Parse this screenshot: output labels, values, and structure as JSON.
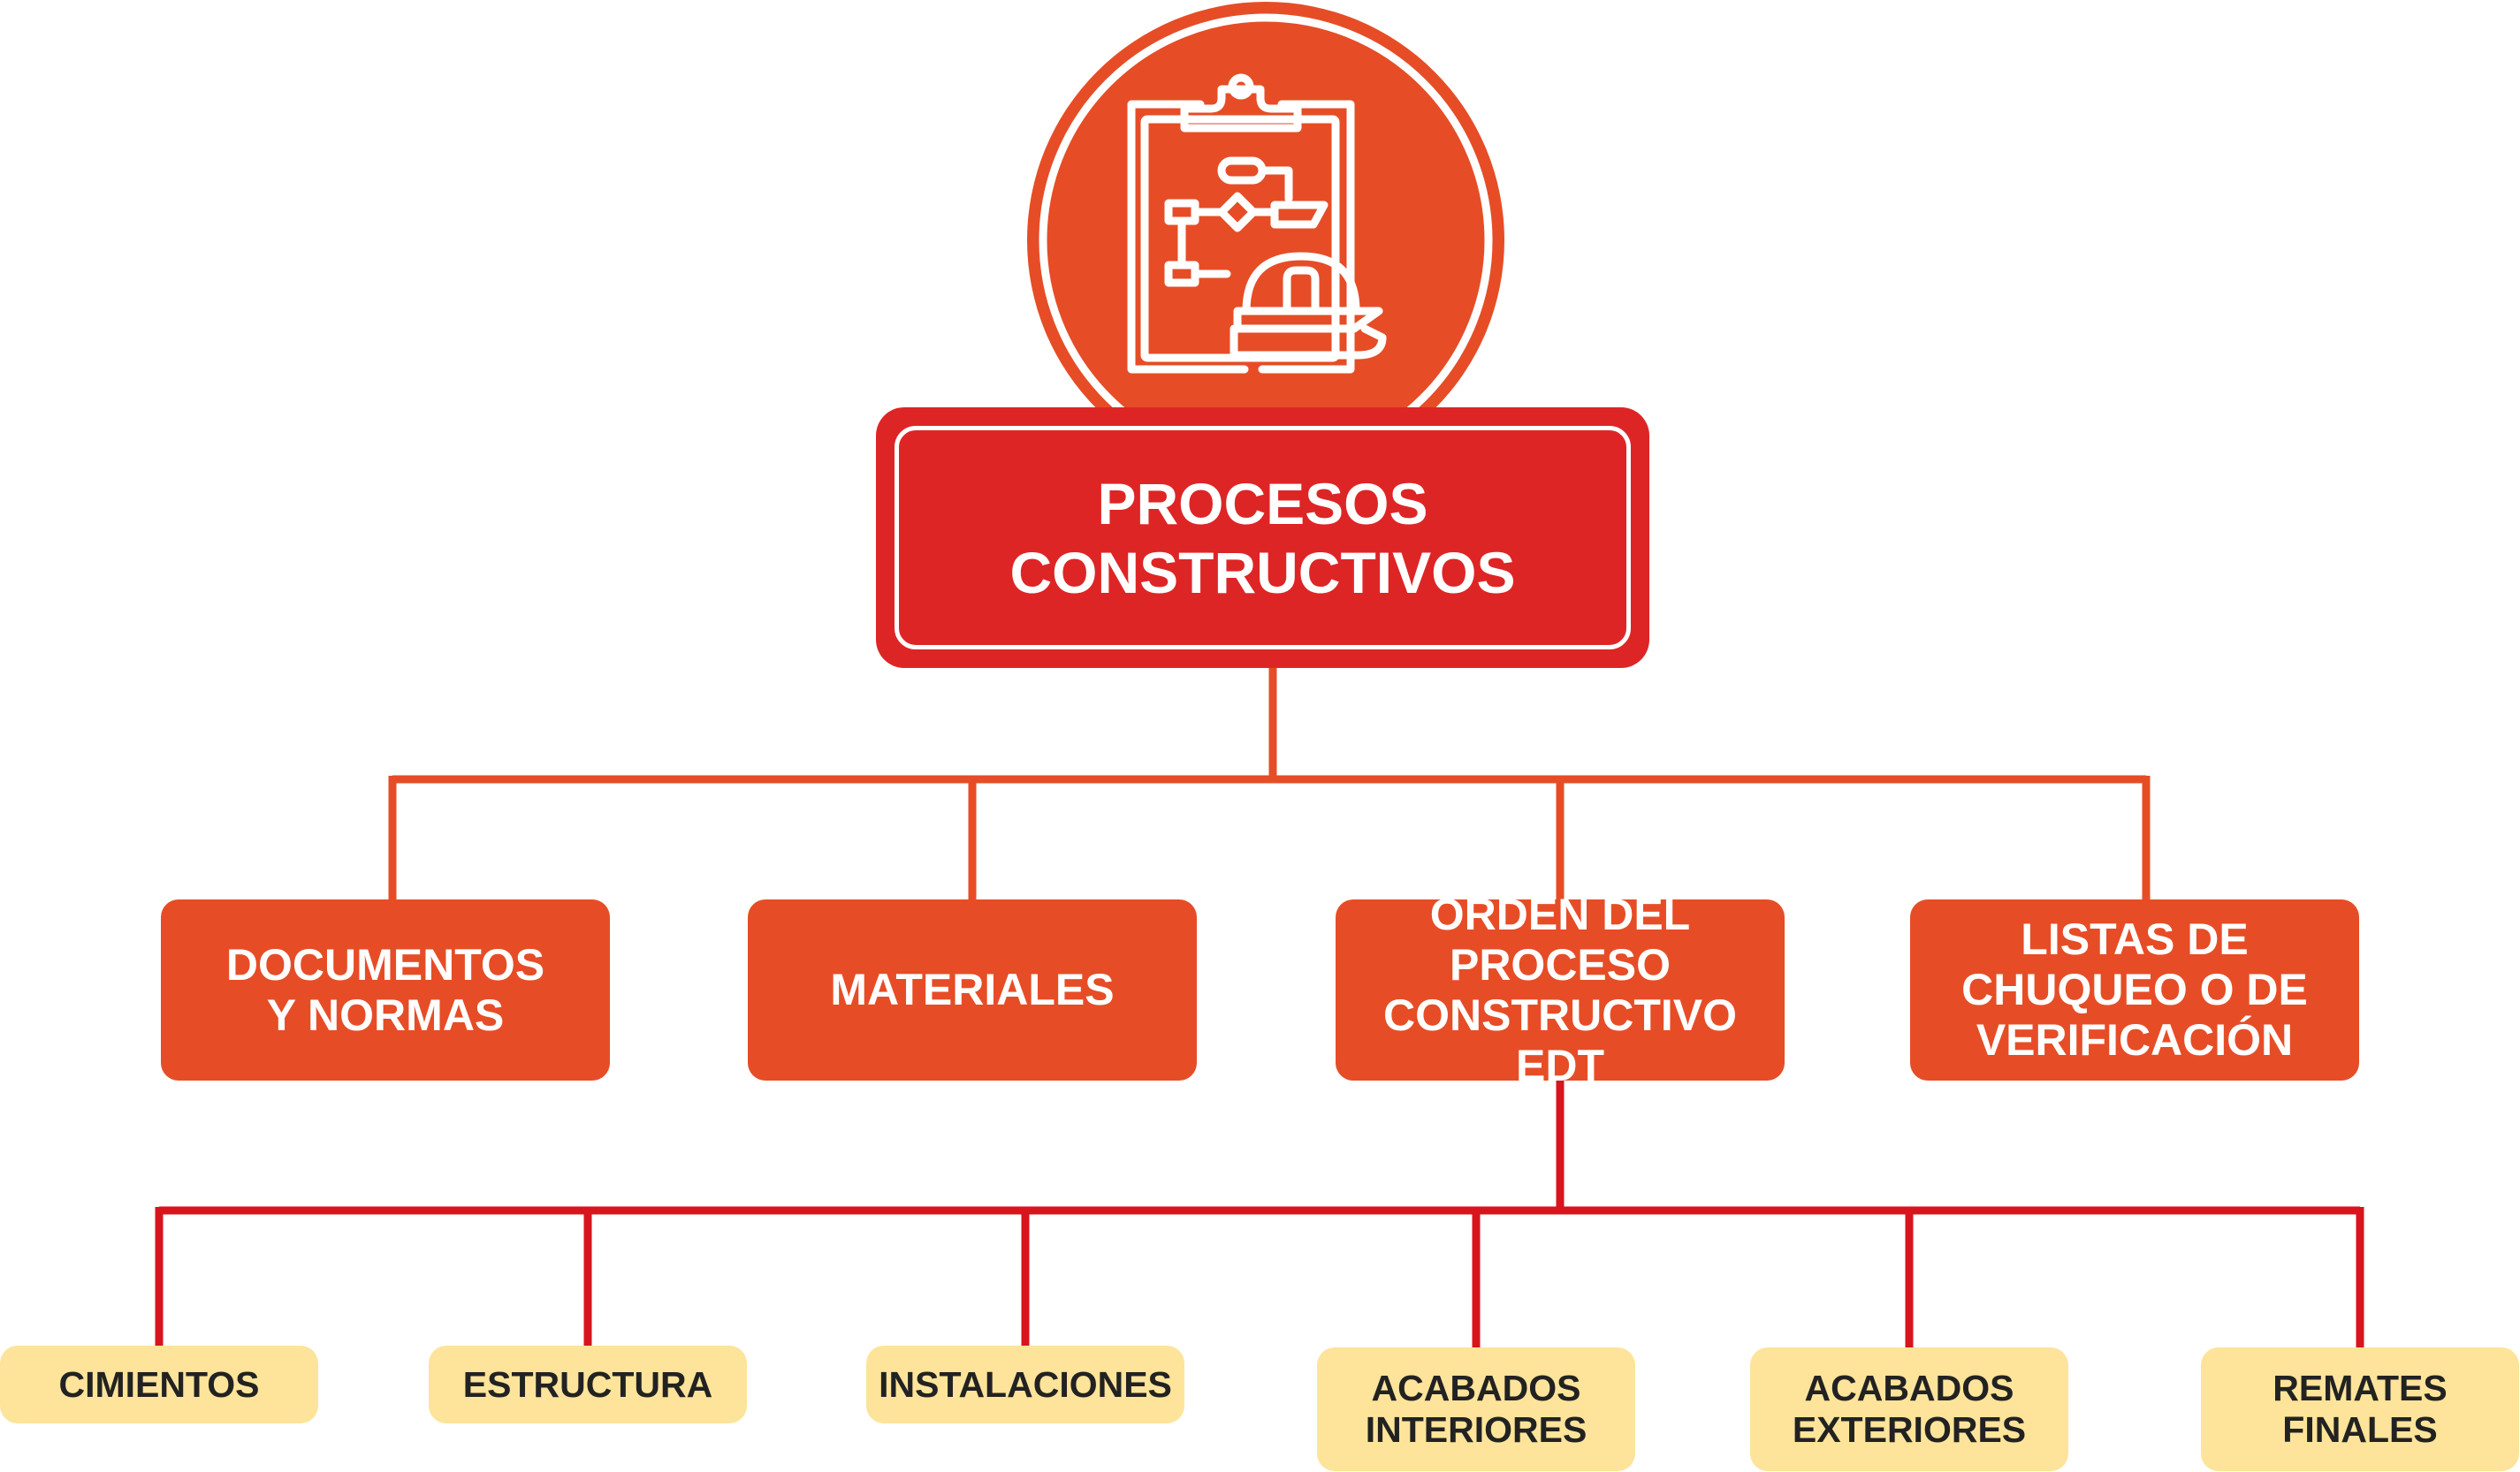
{
  "root": {
    "lines": [
      "PROCESOS",
      "CONSTRUCTIVOS"
    ]
  },
  "icon": "clipboard-flowchart-hardhat-icon",
  "categories": [
    {
      "lines": [
        "DOCUMENTOS",
        "Y NORMAS"
      ]
    },
    {
      "lines": [
        "MATERIALES"
      ]
    },
    {
      "lines": [
        "ORDEN DEL",
        "PROCESO",
        "CONSTRUCTIVO EDT"
      ]
    },
    {
      "lines": [
        "LISTAS DE",
        "CHUQUEO O DE",
        "VERIFICACIÓN"
      ]
    }
  ],
  "stages": [
    {
      "lines": [
        "CIMIENTOS"
      ]
    },
    {
      "lines": [
        "ESTRUCTURA"
      ]
    },
    {
      "lines": [
        "INSTALACIONES"
      ]
    },
    {
      "lines": [
        "ACABADOS",
        "INTERIORES"
      ]
    },
    {
      "lines": [
        "ACABADOS",
        "EXTERIORES"
      ]
    },
    {
      "lines": [
        "REMATES",
        "FINALES"
      ]
    }
  ],
  "colors": {
    "orange": "#e64d26",
    "red": "#de2526",
    "connector_top": "#e64d26",
    "connector_bottom": "#d8141d",
    "leaf_fill": "#fde49a"
  }
}
